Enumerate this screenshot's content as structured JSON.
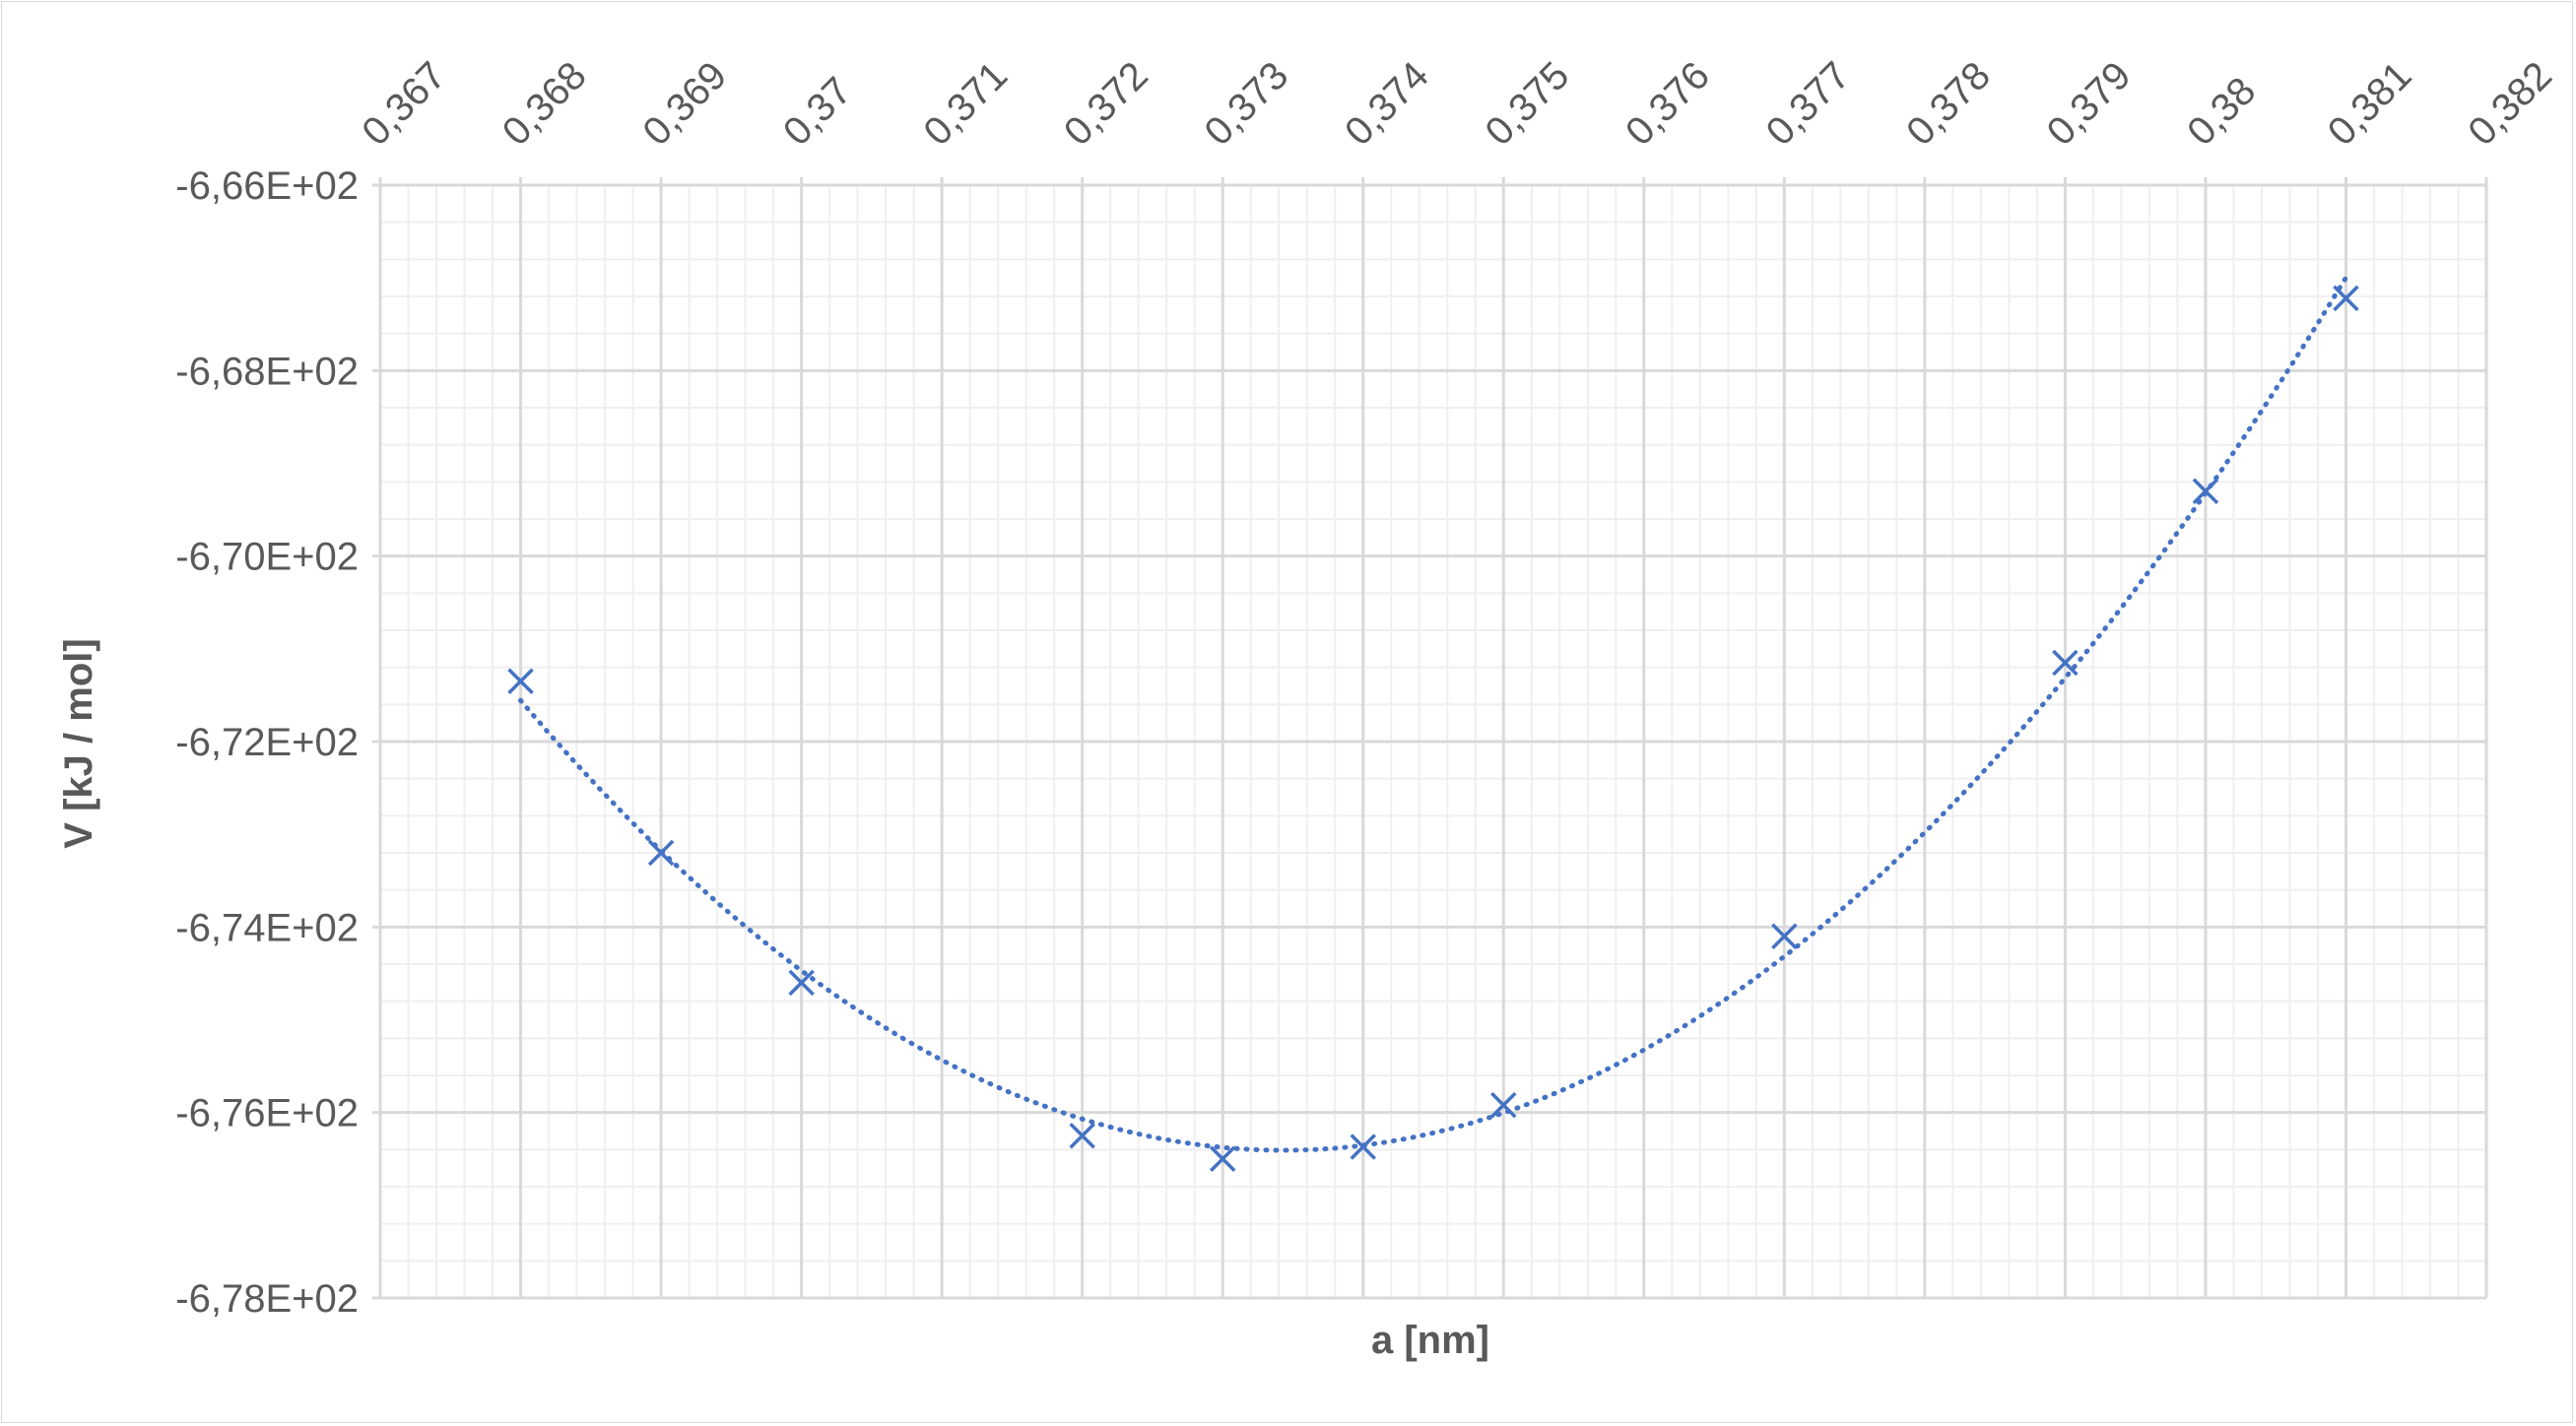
{
  "chart_data": {
    "type": "scatter",
    "title": "",
    "xlabel": "a [nm]",
    "ylabel": "V [kJ / mol]",
    "x_axis_position": "top",
    "xlim": [
      0.367,
      0.382
    ],
    "ylim": [
      -678,
      -666
    ],
    "x_ticks": [
      "0,367",
      "0,368",
      "0,369",
      "0,37",
      "0,371",
      "0,372",
      "0,373",
      "0,374",
      "0,375",
      "0,376",
      "0,377",
      "0,378",
      "0,379",
      "0,38",
      "0,381",
      "0,382"
    ],
    "y_ticks": [
      "-6,66E+02",
      "-6,68E+02",
      "-6,70E+02",
      "-6,72E+02",
      "-6,74E+02",
      "-6,76E+02",
      "-6,78E+02"
    ],
    "grid": {
      "major": true,
      "minor": true
    },
    "marker": "x",
    "trendline": "polynomial (dotted)",
    "series": [
      {
        "x": [
          0.368,
          0.369,
          0.37,
          0.372,
          0.373,
          0.374,
          0.375,
          0.377,
          0.379,
          0.38,
          0.381
        ],
        "y": [
          -671.35,
          -673.2,
          -674.6,
          -676.25,
          -676.5,
          -676.37,
          -675.92,
          -674.1,
          -671.15,
          -669.3,
          -667.22
        ]
      }
    ],
    "colors": {
      "series": "#4472C4",
      "major_grid": "#d9d9d9",
      "minor_grid": "#efefef",
      "text": "#595959"
    }
  }
}
